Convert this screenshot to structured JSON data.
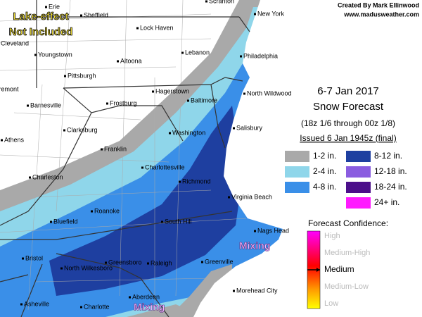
{
  "credit": {
    "author": "Created By Mark Ellinwood",
    "site": "www.madusweather.com"
  },
  "note": {
    "line1": "Lake-effect",
    "line2": "Not Included"
  },
  "header": {
    "title": "6-7 Jan 2017",
    "subtitle": "Snow Forecast",
    "period": "(18z 1/6 through 00z 1/8)",
    "issued": "Issued 6 Jan 1945z (final)"
  },
  "legend": [
    {
      "label": "1-2 in.",
      "color": "#a9a9a9"
    },
    {
      "label": "2-4 in.",
      "color": "#8fd6ea"
    },
    {
      "label": "4-8 in.",
      "color": "#3a8fe8"
    },
    {
      "label": "8-12 in.",
      "color": "#1e3fa0"
    },
    {
      "label": "12-18 in.",
      "color": "#8a5ce0"
    },
    {
      "label": "18-24 in.",
      "color": "#4b0f8a"
    },
    {
      "label": "24+ in.",
      "color": "#ff1aff"
    }
  ],
  "confidence": {
    "title": "Forecast Confidence:",
    "levels": [
      "High",
      "Medium-High",
      "Medium",
      "Medium-Low",
      "Low"
    ],
    "selected": 2
  },
  "annotations": [
    "Mixing",
    "Mixing"
  ],
  "cities": [
    "Erie",
    "Sheffield",
    "Scranton",
    "New York",
    "Cleveland",
    "Lock Haven",
    "Youngstown",
    "Lebanon",
    "Philadelphia",
    "Altoona",
    "Pittsburgh",
    "Hagerstown",
    "Baltimore",
    "North Wildwood",
    "Fremont",
    "Frostburg",
    "Barnesville",
    "Clarksburg",
    "Washington",
    "Salisbury",
    "Athens",
    "Franklin",
    "Charlottesville",
    "Charleston",
    "Richmond",
    "Virginia Beach",
    "Roanoke",
    "Bluefield",
    "South Hill",
    "Nags Head",
    "Greenville",
    "Bristol",
    "North Wilkesboro",
    "Greensboro",
    "Raleigh",
    "Asheville",
    "Charlotte",
    "Aberdeen",
    "Morehead City"
  ]
}
